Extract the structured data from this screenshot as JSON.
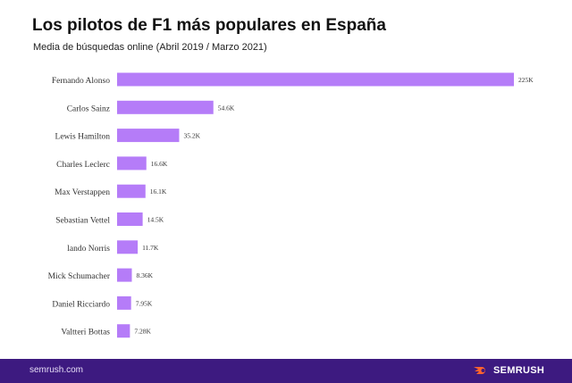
{
  "chart_data": {
    "type": "bar",
    "orientation": "horizontal",
    "title": "Los pilotos de F1 más populares en España",
    "subtitle": "Media de búsquedas online (Abril 2019 / Marzo 2021)",
    "categories": [
      "Fernando Alonso",
      "Carlos Sainz",
      "Lewis Hamilton",
      "Charles Leclerc",
      "Max Verstappen",
      "Sebastian Vettel",
      "lando Norris",
      "Mick Schumacher",
      "Daniel Ricciardo",
      "Valtteri Bottas"
    ],
    "values": [
      225000,
      54600,
      35200,
      16600,
      16100,
      14500,
      11700,
      8360,
      7950,
      7280
    ],
    "data_labels": [
      "225K",
      "54.6K",
      "35.2K",
      "16.6K",
      "16.1K",
      "14.5K",
      "11.7K",
      "8.36K",
      "7.95K",
      "7.28K"
    ],
    "xlim": [
      0,
      225000
    ],
    "grid": false,
    "bar_color": "#b57cf8"
  },
  "footer": {
    "site": "semrush.com",
    "brand": "SEMRUSH",
    "background": "#3d1a80",
    "logo_color": "#ff642d"
  }
}
